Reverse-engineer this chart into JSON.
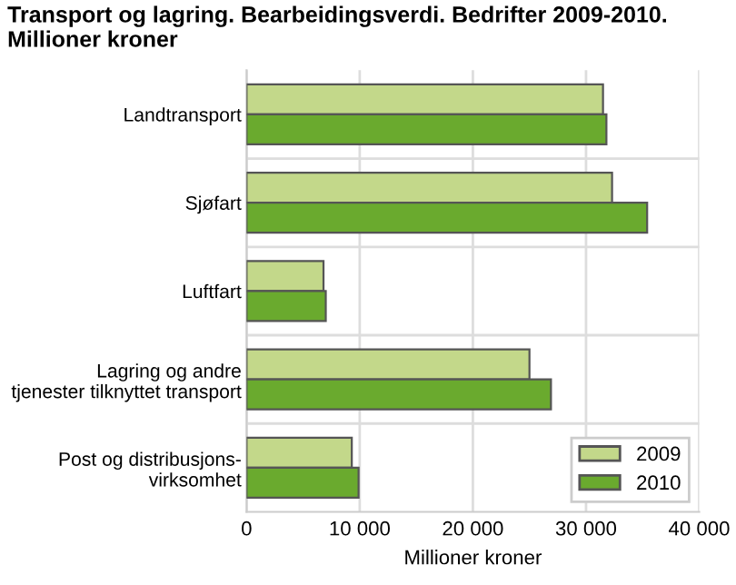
{
  "chart_data": {
    "type": "bar",
    "orientation": "horizontal",
    "title": "Transport og lagring. Bearbeidingsverdi. Bedrifter 2009-2010.\nMillioner kroner",
    "xlabel": "Millioner kroner",
    "categories": [
      "Landtransport",
      "Sjøfart",
      "Luftfart",
      "Lagring og andre\ntjenester tilknyttet transport",
      "Post og distribusjons-\nvirksomhet"
    ],
    "series": [
      {
        "name": "2009",
        "color": "#c3d88a",
        "values": [
          31500,
          32300,
          6800,
          25000,
          9300
        ]
      },
      {
        "name": "2010",
        "color": "#6aaa2e",
        "values": [
          31800,
          35400,
          7000,
          26900,
          9900
        ]
      }
    ],
    "xlim": [
      0,
      40000
    ],
    "xticks": [
      {
        "value": 0,
        "label": "0"
      },
      {
        "value": 10000,
        "label": "10 000"
      },
      {
        "value": 20000,
        "label": "20 000"
      },
      {
        "value": 30000,
        "label": "30 000"
      },
      {
        "value": 40000,
        "label": "40 000"
      }
    ],
    "grid": true,
    "legend": "bottom right"
  }
}
